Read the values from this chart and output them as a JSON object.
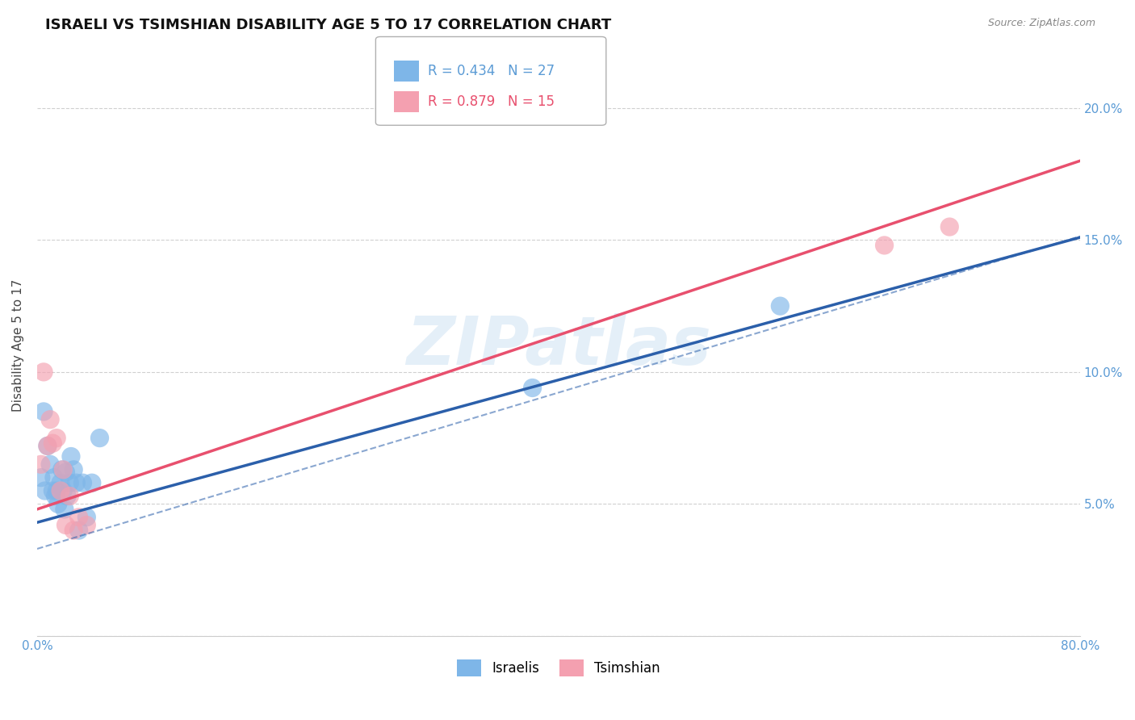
{
  "title": "ISRAELI VS TSIMSHIAN DISABILITY AGE 5 TO 17 CORRELATION CHART",
  "source": "Source: ZipAtlas.com",
  "ylabel": "Disability Age 5 to 17",
  "xlim": [
    0.0,
    0.8
  ],
  "ylim": [
    0.0,
    0.22
  ],
  "yticks": [
    0.0,
    0.05,
    0.1,
    0.15,
    0.2
  ],
  "ytick_labels": [
    "",
    "5.0%",
    "10.0%",
    "15.0%",
    "20.0%"
  ],
  "xticks": [
    0.0,
    0.1,
    0.2,
    0.3,
    0.4,
    0.5,
    0.6,
    0.7,
    0.8
  ],
  "xtick_labels": [
    "0.0%",
    "",
    "",
    "",
    "",
    "",
    "",
    "",
    "80.0%"
  ],
  "israelis_x": [
    0.003,
    0.005,
    0.006,
    0.008,
    0.01,
    0.012,
    0.013,
    0.014,
    0.015,
    0.016,
    0.018,
    0.019,
    0.02,
    0.021,
    0.022,
    0.023,
    0.025,
    0.026,
    0.028,
    0.03,
    0.032,
    0.035,
    0.038,
    0.042,
    0.048,
    0.38,
    0.57
  ],
  "israelis_y": [
    0.06,
    0.085,
    0.055,
    0.072,
    0.065,
    0.055,
    0.06,
    0.053,
    0.055,
    0.05,
    0.058,
    0.063,
    0.055,
    0.048,
    0.062,
    0.053,
    0.058,
    0.068,
    0.063,
    0.058,
    0.04,
    0.058,
    0.045,
    0.058,
    0.075,
    0.094,
    0.125
  ],
  "tsimshian_x": [
    0.003,
    0.005,
    0.008,
    0.01,
    0.012,
    0.015,
    0.018,
    0.02,
    0.022,
    0.025,
    0.028,
    0.032,
    0.038,
    0.65,
    0.7
  ],
  "tsimshian_y": [
    0.065,
    0.1,
    0.072,
    0.082,
    0.073,
    0.075,
    0.055,
    0.063,
    0.042,
    0.053,
    0.04,
    0.045,
    0.042,
    0.148,
    0.155
  ],
  "israeli_color": "#7eb6e8",
  "tsimshian_color": "#f4a0b0",
  "israeli_line_color": "#2b5faa",
  "tsimshian_line_color": "#e8506e",
  "israeli_R": 0.434,
  "israeli_N": 27,
  "tsimshian_R": 0.879,
  "tsimshian_N": 15,
  "watermark": "ZIPatlas",
  "background_color": "#ffffff",
  "grid_color": "#d0d0d0",
  "tick_color": "#5b9bd5",
  "title_fontsize": 13,
  "axis_label_fontsize": 11,
  "tick_fontsize": 11,
  "legend_fontsize": 12,
  "israeli_line_intercept": 0.043,
  "israeli_line_slope": 0.135,
  "tsimshian_line_intercept": 0.048,
  "tsimshian_line_slope": 0.165,
  "dashed_line_intercept": 0.033,
  "dashed_line_slope": 0.148
}
